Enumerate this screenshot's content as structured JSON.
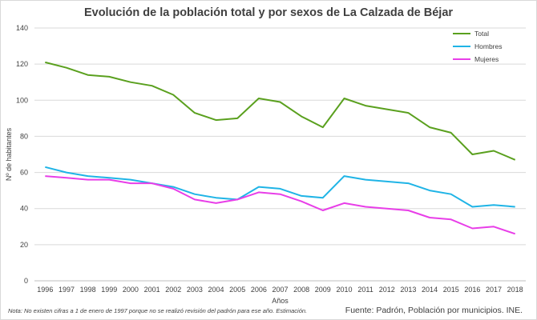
{
  "chart_data": {
    "type": "line",
    "title": "Evolución de la población total y por sexos de La Calzada de Béjar",
    "xlabel": "Años",
    "ylabel": "Nº de habitantes",
    "ylim": [
      0,
      140
    ],
    "yticks": [
      0,
      20,
      40,
      60,
      80,
      100,
      120,
      140
    ],
    "grid": true,
    "legend_position": "top-right",
    "categories": [
      "1996",
      "1997",
      "1998",
      "1999",
      "2000",
      "2001",
      "2002",
      "2003",
      "2004",
      "2005",
      "2006",
      "2007",
      "2008",
      "2009",
      "2010",
      "2011",
      "2012",
      "2013",
      "2014",
      "2015",
      "2016",
      "2017",
      "2018"
    ],
    "series": [
      {
        "name": "Total",
        "color": "#5aa01e",
        "values": [
          121,
          118,
          114,
          113,
          110,
          108,
          103,
          93,
          89,
          90,
          101,
          99,
          91,
          85,
          101,
          97,
          95,
          93,
          85,
          82,
          70,
          72,
          67
        ]
      },
      {
        "name": "Hombres",
        "color": "#1fb4e6",
        "values": [
          63,
          60,
          58,
          57,
          56,
          54,
          52,
          48,
          46,
          45,
          52,
          51,
          47,
          46,
          58,
          56,
          55,
          54,
          50,
          48,
          41,
          42,
          41
        ]
      },
      {
        "name": "Mujeres",
        "color": "#e83ee8",
        "values": [
          58,
          57,
          56,
          56,
          54,
          54,
          51,
          45,
          43,
          45,
          49,
          48,
          44,
          39,
          43,
          41,
          40,
          39,
          35,
          34,
          29,
          30,
          26
        ]
      }
    ]
  },
  "footer": {
    "note": "Nota: No existen cifras a 1 de enero de 1997 porque no se realizó revisión del padrón para ese año. Estimación.",
    "source": "Fuente: Padrón, Población por municipios. INE."
  }
}
